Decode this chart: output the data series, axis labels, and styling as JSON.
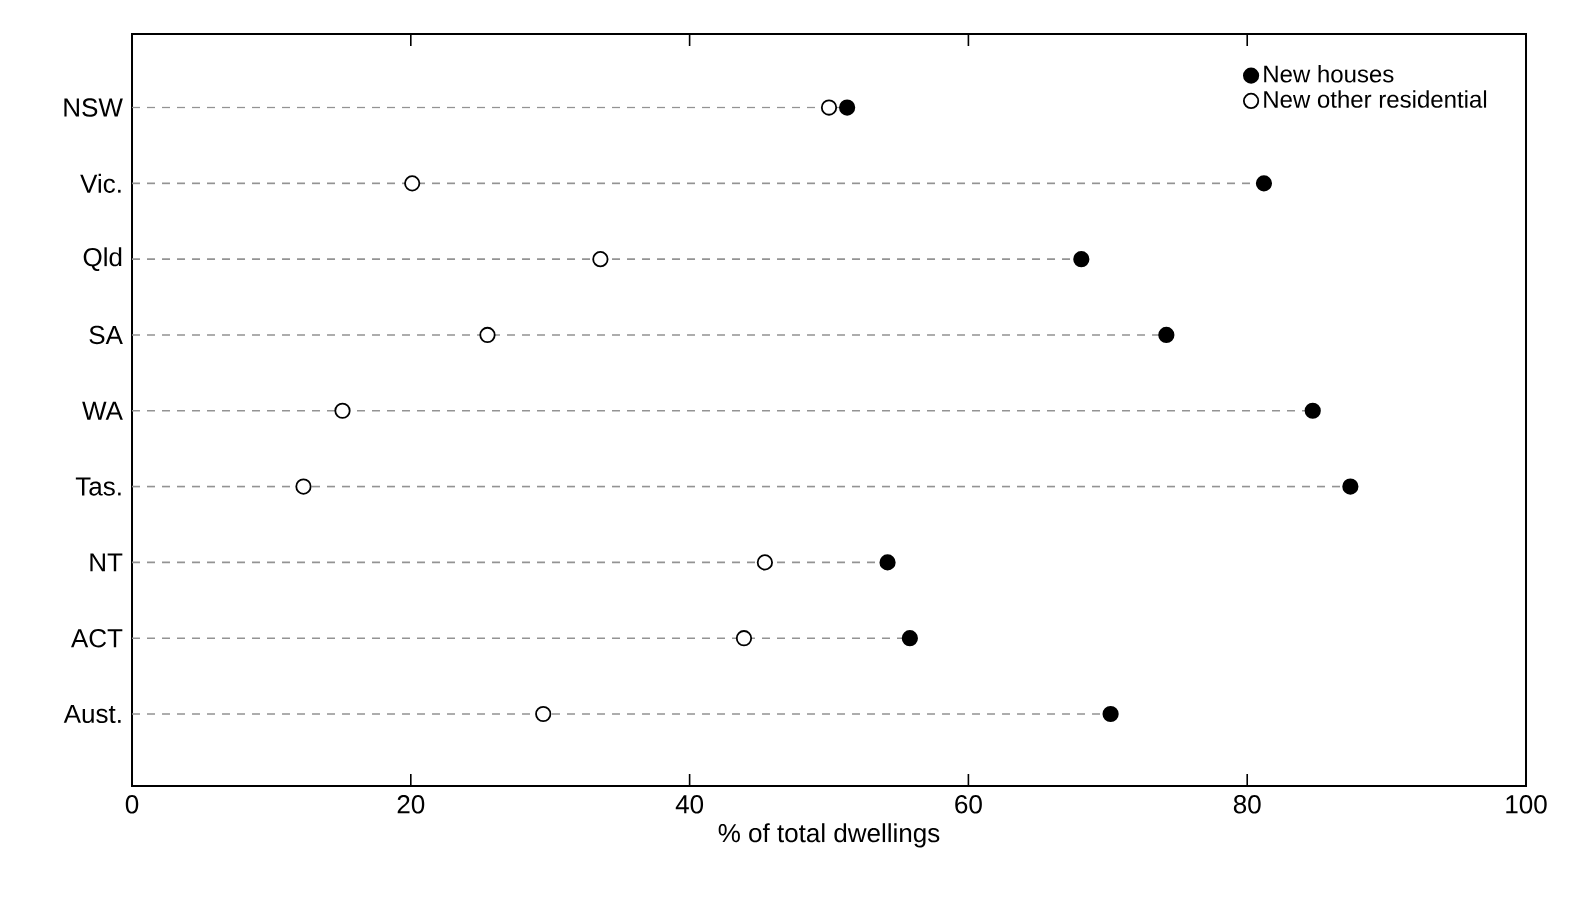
{
  "chart_data": {
    "type": "lollipop",
    "orientation": "horizontal",
    "categories": [
      "NSW",
      "Vic.",
      "Qld",
      "SA",
      "WA",
      "Tas.",
      "NT",
      "ACT",
      "Aust."
    ],
    "series": [
      {
        "name": "New houses",
        "color": "#000000",
        "values": [
          51.3,
          81.2,
          68.1,
          74.2,
          84.7,
          87.4,
          54.2,
          55.8,
          70.2
        ]
      },
      {
        "name": "New other residential",
        "color": "#ffffff",
        "values": [
          50.0,
          20.1,
          33.6,
          25.5,
          15.1,
          12.3,
          45.4,
          43.9,
          29.5
        ]
      }
    ],
    "xlabel": "% of total dwellings",
    "xlim": [
      0,
      100
    ],
    "xticks": [
      0,
      20,
      40,
      60,
      80,
      100
    ],
    "marker": "circle",
    "line_style": "dashed",
    "legend": "top right",
    "grid": false
  }
}
